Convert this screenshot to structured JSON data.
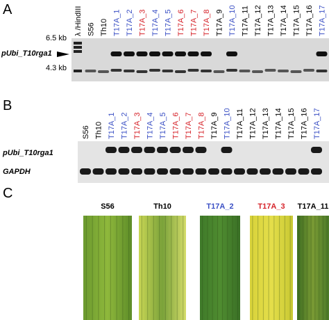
{
  "panel_a": {
    "label": "A",
    "probe": "pUbi_T10rga1",
    "markers": [
      "6.5 kb",
      "4.3 kb"
    ],
    "lanes": [
      {
        "text": "λ /HindIII",
        "color": "#000000"
      },
      {
        "text": "S56",
        "color": "#000000"
      },
      {
        "text": "Th10",
        "color": "#000000"
      },
      {
        "text": "T17A_1",
        "color": "#3a4fc4"
      },
      {
        "text": "T17A_2",
        "color": "#3a4fc4"
      },
      {
        "text": "T17A_3",
        "color": "#d6232a"
      },
      {
        "text": "T17A_4",
        "color": "#3a4fc4"
      },
      {
        "text": "T17A_5",
        "color": "#3a4fc4"
      },
      {
        "text": "T17A_6",
        "color": "#d6232a"
      },
      {
        "text": "T17A_7",
        "color": "#d6232a"
      },
      {
        "text": "T17A_8",
        "color": "#d6232a"
      },
      {
        "text": "T17A_9",
        "color": "#000000"
      },
      {
        "text": "T17A_10",
        "color": "#3a4fc4"
      },
      {
        "text": "T17A_11",
        "color": "#000000"
      },
      {
        "text": "T17A_12",
        "color": "#000000"
      },
      {
        "text": "T17A_13",
        "color": "#000000"
      },
      {
        "text": "T17A_14",
        "color": "#000000"
      },
      {
        "text": "T17A_15",
        "color": "#000000"
      },
      {
        "text": "T17A_16",
        "color": "#000000"
      },
      {
        "text": "T17A_17",
        "color": "#3a4fc4"
      }
    ]
  },
  "panel_b": {
    "label": "B",
    "rows": [
      "pUbi_T10rga1",
      "GAPDH"
    ],
    "lanes": [
      {
        "text": "S56",
        "color": "#000000"
      },
      {
        "text": "Th10",
        "color": "#000000"
      },
      {
        "text": "T17A_1",
        "color": "#3a4fc4"
      },
      {
        "text": "T17A_2",
        "color": "#3a4fc4"
      },
      {
        "text": "T17A_3",
        "color": "#d6232a"
      },
      {
        "text": "T17A_4",
        "color": "#3a4fc4"
      },
      {
        "text": "T17A_5",
        "color": "#3a4fc4"
      },
      {
        "text": "T17A_6",
        "color": "#d6232a"
      },
      {
        "text": "T17A_7",
        "color": "#d6232a"
      },
      {
        "text": "T17A_8",
        "color": "#d6232a"
      },
      {
        "text": "T17A_9",
        "color": "#000000"
      },
      {
        "text": "T17A_10",
        "color": "#3a4fc4"
      },
      {
        "text": "T17A_11",
        "color": "#000000"
      },
      {
        "text": "T17A_12",
        "color": "#000000"
      },
      {
        "text": "T17A_13",
        "color": "#000000"
      },
      {
        "text": "T17A_14",
        "color": "#000000"
      },
      {
        "text": "T17A_15",
        "color": "#000000"
      },
      {
        "text": "T17A_16",
        "color": "#000000"
      },
      {
        "text": "T17A_17",
        "color": "#3a4fc4"
      }
    ]
  },
  "panel_c": {
    "label": "C",
    "samples": [
      {
        "text": "S56",
        "color": "#000000"
      },
      {
        "text": "Th10",
        "color": "#000000"
      },
      {
        "text": "T17A_2",
        "color": "#3a4fc4"
      },
      {
        "text": "T17A_3",
        "color": "#d6232a"
      },
      {
        "text": "T17A_11",
        "color": "#000000"
      }
    ]
  }
}
